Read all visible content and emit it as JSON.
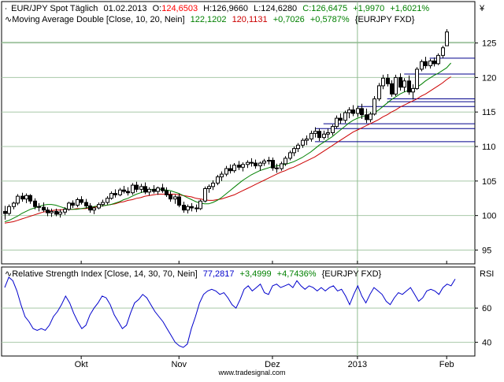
{
  "chart_data": [
    {
      "type": "candlestick",
      "header": {
        "instrument": "EUR/JPY Spot Täglich",
        "date": "01.02.2013",
        "open_label": "O:",
        "open": "124,6503",
        "high_label": "H:",
        "high": "126,9660",
        "low_label": "L:",
        "low": "124,6280",
        "close_label": "C:",
        "close": "126,6475",
        "change": "+1,9970",
        "change_pct": "+1,6021%"
      },
      "indicator_header": {
        "name": "Moving Average Double [Close, 10, 20, Nein]",
        "ma_fast": "122,1202",
        "ma_slow": "120,1131",
        "diff": "+0,7026",
        "diff_pct": "+0,5787%",
        "source": "{EURJPY FXD}"
      },
      "ylabel": "¥",
      "ylim": [
        93,
        131
      ],
      "yticks": [
        "95",
        "100",
        "105",
        "110",
        "115",
        "120",
        "125"
      ],
      "x_months": [
        "Okt",
        "Nov",
        "Dez",
        "2013",
        "Feb"
      ],
      "x_month_positions": [
        19,
        42,
        64,
        84,
        105
      ],
      "x_range": [
        1,
        107
      ],
      "candles": [
        {
          "o": 100.6,
          "h": 101.4,
          "l": 99.4,
          "c": 100.3
        },
        {
          "o": 100.3,
          "h": 101.6,
          "l": 100.0,
          "c": 101.3
        },
        {
          "o": 101.3,
          "h": 102.0,
          "l": 100.9,
          "c": 101.8
        },
        {
          "o": 101.8,
          "h": 103.1,
          "l": 101.5,
          "c": 102.8
        },
        {
          "o": 102.8,
          "h": 103.3,
          "l": 102.0,
          "c": 102.4
        },
        {
          "o": 102.4,
          "h": 103.2,
          "l": 101.8,
          "c": 102.9
        },
        {
          "o": 102.9,
          "h": 103.1,
          "l": 101.7,
          "c": 102.1
        },
        {
          "o": 102.1,
          "h": 102.5,
          "l": 100.9,
          "c": 101.3
        },
        {
          "o": 101.3,
          "h": 101.8,
          "l": 100.6,
          "c": 101.2
        },
        {
          "o": 101.2,
          "h": 101.9,
          "l": 100.5,
          "c": 100.8
        },
        {
          "o": 100.8,
          "h": 101.2,
          "l": 99.9,
          "c": 100.4
        },
        {
          "o": 100.4,
          "h": 101.0,
          "l": 99.8,
          "c": 100.6
        },
        {
          "o": 100.6,
          "h": 101.0,
          "l": 99.9,
          "c": 100.2
        },
        {
          "o": 100.2,
          "h": 100.9,
          "l": 99.7,
          "c": 100.5
        },
        {
          "o": 100.5,
          "h": 101.2,
          "l": 100.1,
          "c": 100.9
        },
        {
          "o": 100.9,
          "h": 102.0,
          "l": 100.7,
          "c": 101.8
        },
        {
          "o": 101.8,
          "h": 102.2,
          "l": 101.1,
          "c": 101.5
        },
        {
          "o": 101.5,
          "h": 102.6,
          "l": 101.2,
          "c": 102.3
        },
        {
          "o": 102.3,
          "h": 102.8,
          "l": 101.6,
          "c": 101.9
        },
        {
          "o": 101.9,
          "h": 102.4,
          "l": 101.0,
          "c": 101.4
        },
        {
          "o": 101.4,
          "h": 101.8,
          "l": 100.4,
          "c": 100.8
        },
        {
          "o": 100.8,
          "h": 101.3,
          "l": 100.2,
          "c": 101.1
        },
        {
          "o": 101.1,
          "h": 101.9,
          "l": 100.9,
          "c": 101.6
        },
        {
          "o": 101.6,
          "h": 102.3,
          "l": 101.3,
          "c": 101.9
        },
        {
          "o": 101.9,
          "h": 102.8,
          "l": 101.6,
          "c": 102.5
        },
        {
          "o": 102.5,
          "h": 103.5,
          "l": 102.3,
          "c": 103.2
        },
        {
          "o": 103.2,
          "h": 103.8,
          "l": 102.6,
          "c": 103.0
        },
        {
          "o": 103.0,
          "h": 104.0,
          "l": 102.8,
          "c": 103.7
        },
        {
          "o": 103.7,
          "h": 104.3,
          "l": 103.2,
          "c": 103.5
        },
        {
          "o": 103.5,
          "h": 104.1,
          "l": 102.9,
          "c": 103.3
        },
        {
          "o": 103.3,
          "h": 104.7,
          "l": 103.0,
          "c": 104.4
        },
        {
          "o": 104.4,
          "h": 104.9,
          "l": 103.4,
          "c": 103.8
        },
        {
          "o": 103.8,
          "h": 104.6,
          "l": 103.3,
          "c": 104.2
        },
        {
          "o": 104.2,
          "h": 104.8,
          "l": 103.1,
          "c": 103.4
        },
        {
          "o": 103.4,
          "h": 104.1,
          "l": 102.9,
          "c": 103.8
        },
        {
          "o": 103.8,
          "h": 104.4,
          "l": 103.2,
          "c": 103.5
        },
        {
          "o": 103.5,
          "h": 104.2,
          "l": 103.0,
          "c": 104.0
        },
        {
          "o": 104.0,
          "h": 104.6,
          "l": 103.3,
          "c": 103.6
        },
        {
          "o": 103.6,
          "h": 104.1,
          "l": 102.7,
          "c": 103.0
        },
        {
          "o": 103.0,
          "h": 103.5,
          "l": 102.0,
          "c": 102.4
        },
        {
          "o": 102.4,
          "h": 103.0,
          "l": 101.7,
          "c": 102.7
        },
        {
          "o": 102.7,
          "h": 103.2,
          "l": 101.2,
          "c": 101.5
        },
        {
          "o": 101.5,
          "h": 102.0,
          "l": 100.4,
          "c": 100.8
        },
        {
          "o": 100.8,
          "h": 101.6,
          "l": 100.3,
          "c": 101.3
        },
        {
          "o": 101.3,
          "h": 101.8,
          "l": 100.6,
          "c": 101.1
        },
        {
          "o": 101.1,
          "h": 101.6,
          "l": 100.5,
          "c": 101.0
        },
        {
          "o": 101.0,
          "h": 102.3,
          "l": 100.8,
          "c": 102.1
        },
        {
          "o": 102.1,
          "h": 104.2,
          "l": 101.9,
          "c": 103.9
        },
        {
          "o": 103.9,
          "h": 104.5,
          "l": 103.3,
          "c": 104.2
        },
        {
          "o": 104.2,
          "h": 105.1,
          "l": 103.7,
          "c": 104.7
        },
        {
          "o": 104.7,
          "h": 105.9,
          "l": 104.4,
          "c": 105.6
        },
        {
          "o": 105.6,
          "h": 106.4,
          "l": 105.0,
          "c": 106.0
        },
        {
          "o": 106.0,
          "h": 107.2,
          "l": 105.7,
          "c": 106.8
        },
        {
          "o": 106.8,
          "h": 107.4,
          "l": 106.1,
          "c": 106.5
        },
        {
          "o": 106.5,
          "h": 107.6,
          "l": 106.2,
          "c": 107.3
        },
        {
          "o": 107.3,
          "h": 107.9,
          "l": 106.6,
          "c": 107.0
        },
        {
          "o": 107.0,
          "h": 107.7,
          "l": 106.4,
          "c": 107.4
        },
        {
          "o": 107.4,
          "h": 108.0,
          "l": 106.9,
          "c": 107.7
        },
        {
          "o": 107.7,
          "h": 108.3,
          "l": 107.1,
          "c": 107.6
        },
        {
          "o": 107.6,
          "h": 108.1,
          "l": 106.8,
          "c": 107.2
        },
        {
          "o": 107.2,
          "h": 107.8,
          "l": 106.5,
          "c": 107.6
        },
        {
          "o": 107.6,
          "h": 108.2,
          "l": 107.2,
          "c": 107.9
        },
        {
          "o": 107.9,
          "h": 108.5,
          "l": 107.4,
          "c": 108.0
        },
        {
          "o": 108.0,
          "h": 108.4,
          "l": 106.5,
          "c": 106.9
        },
        {
          "o": 106.9,
          "h": 107.5,
          "l": 106.2,
          "c": 106.8
        },
        {
          "o": 106.8,
          "h": 107.8,
          "l": 106.5,
          "c": 107.5
        },
        {
          "o": 107.5,
          "h": 108.6,
          "l": 107.2,
          "c": 108.3
        },
        {
          "o": 108.3,
          "h": 109.4,
          "l": 108.0,
          "c": 109.1
        },
        {
          "o": 109.1,
          "h": 110.0,
          "l": 108.6,
          "c": 109.7
        },
        {
          "o": 109.7,
          "h": 110.5,
          "l": 109.2,
          "c": 110.2
        },
        {
          "o": 110.2,
          "h": 111.2,
          "l": 109.8,
          "c": 110.9
        },
        {
          "o": 110.9,
          "h": 111.6,
          "l": 110.2,
          "c": 111.1
        },
        {
          "o": 111.1,
          "h": 112.3,
          "l": 110.7,
          "c": 111.9
        },
        {
          "o": 111.9,
          "h": 112.8,
          "l": 111.3,
          "c": 112.2
        },
        {
          "o": 112.2,
          "h": 112.6,
          "l": 110.8,
          "c": 111.3
        },
        {
          "o": 111.3,
          "h": 112.3,
          "l": 111.0,
          "c": 111.8
        },
        {
          "o": 111.8,
          "h": 112.6,
          "l": 111.2,
          "c": 112.0
        },
        {
          "o": 112.0,
          "h": 113.2,
          "l": 111.6,
          "c": 112.9
        },
        {
          "o": 112.9,
          "h": 114.5,
          "l": 112.6,
          "c": 114.1
        },
        {
          "o": 114.1,
          "h": 114.8,
          "l": 113.3,
          "c": 113.8
        },
        {
          "o": 113.8,
          "h": 115.2,
          "l": 113.4,
          "c": 114.9
        },
        {
          "o": 114.9,
          "h": 115.7,
          "l": 114.1,
          "c": 115.3
        },
        {
          "o": 115.3,
          "h": 116.0,
          "l": 114.4,
          "c": 114.8
        },
        {
          "o": 114.8,
          "h": 115.9,
          "l": 114.3,
          "c": 115.5
        },
        {
          "o": 115.5,
          "h": 116.2,
          "l": 114.0,
          "c": 114.6
        },
        {
          "o": 114.6,
          "h": 115.5,
          "l": 113.4,
          "c": 113.9
        },
        {
          "o": 113.9,
          "h": 115.0,
          "l": 113.5,
          "c": 114.7
        },
        {
          "o": 114.7,
          "h": 117.3,
          "l": 114.5,
          "c": 116.9
        },
        {
          "o": 116.9,
          "h": 119.2,
          "l": 116.6,
          "c": 118.8
        },
        {
          "o": 118.8,
          "h": 120.4,
          "l": 118.3,
          "c": 119.9
        },
        {
          "o": 119.9,
          "h": 120.5,
          "l": 118.7,
          "c": 119.1
        },
        {
          "o": 119.1,
          "h": 119.6,
          "l": 117.2,
          "c": 117.6
        },
        {
          "o": 117.6,
          "h": 120.4,
          "l": 117.3,
          "c": 120.0
        },
        {
          "o": 120.0,
          "h": 120.6,
          "l": 118.1,
          "c": 118.6
        },
        {
          "o": 118.6,
          "h": 119.9,
          "l": 117.9,
          "c": 119.5
        },
        {
          "o": 119.5,
          "h": 120.3,
          "l": 117.5,
          "c": 117.9
        },
        {
          "o": 117.9,
          "h": 119.0,
          "l": 116.8,
          "c": 118.4
        },
        {
          "o": 118.4,
          "h": 121.5,
          "l": 118.2,
          "c": 121.2
        },
        {
          "o": 121.2,
          "h": 122.6,
          "l": 120.9,
          "c": 122.3
        },
        {
          "o": 122.3,
          "h": 123.0,
          "l": 121.3,
          "c": 121.7
        },
        {
          "o": 121.7,
          "h": 122.7,
          "l": 121.3,
          "c": 122.4
        },
        {
          "o": 122.4,
          "h": 122.9,
          "l": 121.6,
          "c": 122.0
        },
        {
          "o": 122.0,
          "h": 123.5,
          "l": 121.8,
          "c": 123.2
        },
        {
          "o": 123.2,
          "h": 124.6,
          "l": 122.8,
          "c": 124.3
        },
        {
          "o": 124.6,
          "h": 127.0,
          "l": 124.6,
          "c": 126.6
        }
      ],
      "ma_fast_values": [
        99.1,
        99.3,
        99.6,
        99.9,
        100.3,
        100.6,
        100.9,
        101.1,
        101.3,
        101.5,
        101.6,
        101.6,
        101.5,
        101.3,
        101.1,
        100.9,
        100.9,
        100.9,
        101.0,
        101.1,
        101.2,
        101.3,
        101.4,
        101.4,
        101.5,
        101.6,
        101.8,
        102.0,
        102.3,
        102.5,
        102.8,
        103.1,
        103.3,
        103.5,
        103.7,
        103.8,
        103.8,
        103.8,
        103.7,
        103.6,
        103.4,
        103.2,
        102.9,
        102.6,
        102.3,
        102.0,
        101.8,
        101.7,
        101.7,
        101.9,
        102.2,
        102.6,
        103.1,
        103.6,
        104.1,
        104.6,
        105.1,
        105.5,
        105.9,
        106.2,
        106.5,
        106.7,
        106.9,
        107.1,
        107.2,
        107.3,
        107.4,
        107.6,
        107.8,
        108.1,
        108.4,
        108.8,
        109.2,
        109.7,
        110.2,
        110.6,
        111.0,
        111.4,
        111.9,
        112.4,
        112.9,
        113.4,
        113.8,
        114.1,
        114.3,
        114.5,
        114.6,
        114.9,
        115.3,
        115.8,
        116.3,
        116.8,
        117.2,
        117.6,
        117.9,
        118.1,
        118.3,
        118.6,
        119.0,
        119.5,
        119.9,
        120.3,
        120.6,
        121.0,
        121.4,
        122.1
      ],
      "ma_slow_values": [
        98.9,
        99.0,
        99.1,
        99.3,
        99.5,
        99.7,
        99.9,
        100.1,
        100.3,
        100.5,
        100.6,
        100.7,
        100.8,
        100.8,
        100.9,
        100.9,
        100.9,
        101.0,
        101.0,
        101.0,
        101.1,
        101.2,
        101.3,
        101.4,
        101.5,
        101.6,
        101.7,
        101.9,
        102.0,
        102.2,
        102.3,
        102.5,
        102.6,
        102.8,
        102.9,
        103.0,
        103.1,
        103.1,
        103.1,
        103.1,
        103.1,
        103.0,
        102.9,
        102.8,
        102.7,
        102.5,
        102.4,
        102.3,
        102.2,
        102.2,
        102.3,
        102.4,
        102.6,
        102.8,
        103.0,
        103.3,
        103.6,
        103.9,
        104.2,
        104.5,
        104.8,
        105.1,
        105.4,
        105.7,
        106.0,
        106.3,
        106.5,
        106.8,
        107.0,
        107.3,
        107.6,
        107.9,
        108.2,
        108.5,
        108.9,
        109.3,
        109.7,
        110.1,
        110.5,
        110.9,
        111.3,
        111.7,
        112.1,
        112.4,
        112.7,
        113.0,
        113.3,
        113.6,
        113.9,
        114.3,
        114.6,
        115.0,
        115.3,
        115.7,
        116.0,
        116.3,
        116.6,
        116.9,
        117.3,
        117.6,
        118.0,
        118.4,
        118.8,
        119.2,
        119.7,
        120.1
      ],
      "horizontal_levels": [
        {
          "y": 122.8,
          "x_start": 101
        },
        {
          "y": 120.5,
          "x_start": 95
        },
        {
          "y": 116.9,
          "x_start": 91
        },
        {
          "y": 116.5,
          "x_start": 91
        },
        {
          "y": 115.8,
          "x_start": 84
        },
        {
          "y": 113.3,
          "x_start": 76
        },
        {
          "y": 112.6,
          "x_start": 74
        },
        {
          "y": 110.7,
          "x_start": 74
        }
      ],
      "crosshair_x": 84,
      "crosshair_y": 125.1
    },
    {
      "type": "line",
      "header": {
        "name": "Relative Strength Index [Close, 14, 30, 70, Nein]",
        "value": "77,2817",
        "change": "+3,4999",
        "change_pct": "+4,7436%",
        "source": "{EURJPY FXD}"
      },
      "ylabel": "RSI",
      "ylim": [
        32,
        84
      ],
      "yticks": [
        "40",
        "60"
      ],
      "values": [
        72,
        78,
        76,
        70,
        62,
        55,
        52,
        48,
        47,
        48,
        47,
        50,
        55,
        58,
        62,
        67,
        63,
        57,
        52,
        48,
        50,
        56,
        60,
        63,
        67,
        66,
        62,
        56,
        52,
        48,
        50,
        57,
        63,
        65,
        68,
        66,
        62,
        58,
        55,
        52,
        48,
        44,
        40,
        38,
        37,
        39,
        48,
        55,
        63,
        68,
        70,
        71,
        70,
        68,
        69,
        66,
        62,
        60,
        65,
        71,
        73,
        70,
        72,
        74,
        69,
        68,
        73,
        74,
        72,
        73,
        74,
        72,
        76,
        73,
        71,
        73,
        72,
        70,
        72,
        70,
        72,
        73,
        70,
        71,
        67,
        62,
        68,
        73,
        67,
        63,
        68,
        72,
        70,
        68,
        64,
        62,
        66,
        69,
        68,
        70,
        72,
        68,
        64,
        66,
        70,
        71,
        70,
        68,
        72,
        74,
        73,
        77
      ]
    }
  ],
  "footer": "www.tradesignal.com",
  "colors": {
    "up_candle": "#ffffff",
    "down_candle": "#000000",
    "ma_fast": "#008000",
    "ma_slow": "#cc0000",
    "rsi": "#0000cc",
    "grid": "#a8c8a8",
    "levels": "#00008b",
    "crosshair": "#8fbc8f",
    "header_red": "#ff0000",
    "header_green": "#008000"
  }
}
